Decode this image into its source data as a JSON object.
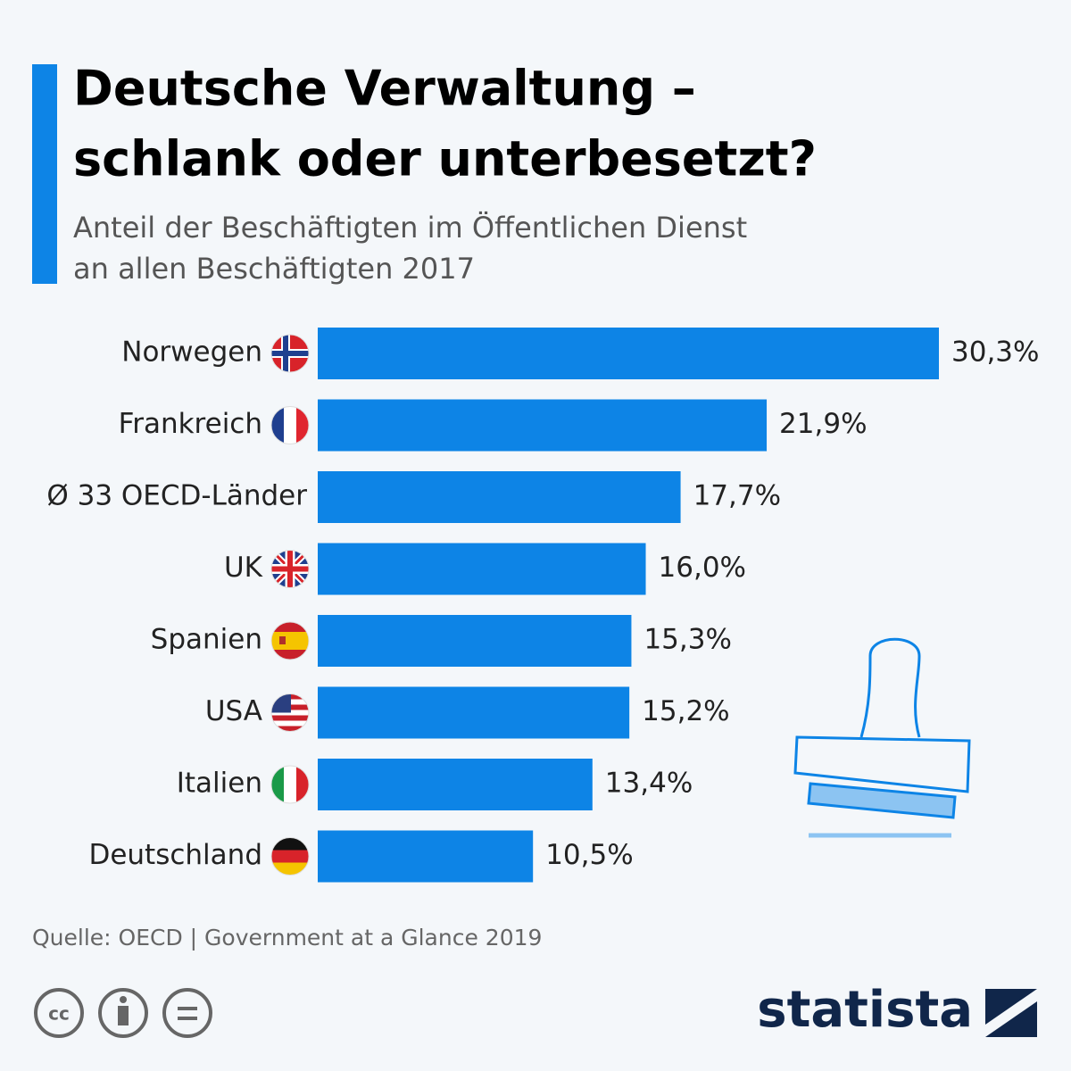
{
  "chart_data": {
    "type": "bar",
    "orientation": "horizontal",
    "title": [
      "Deutsche Verwaltung –",
      "schlank oder unterbesetzt?"
    ],
    "subtitle": [
      "Anteil der Beschäftigten im Öffentlichen Dienst",
      "an allen Beschäftigten 2017"
    ],
    "categories": [
      "Norwegen",
      "Frankreich",
      "Ø 33 OECD-Länder",
      "UK",
      "Spanien",
      "USA",
      "Italien",
      "Deutschland"
    ],
    "values": [
      30.3,
      21.9,
      17.7,
      16.0,
      15.3,
      15.2,
      13.4,
      10.5
    ],
    "value_labels": [
      "30,3%",
      "21,9%",
      "17,7%",
      "16,0%",
      "15,3%",
      "15,2%",
      "13,4%",
      "10,5%"
    ],
    "color": "#0d84e6",
    "source": "Quelle: OECD | Government at a Glance 2019",
    "brand": "statista"
  }
}
